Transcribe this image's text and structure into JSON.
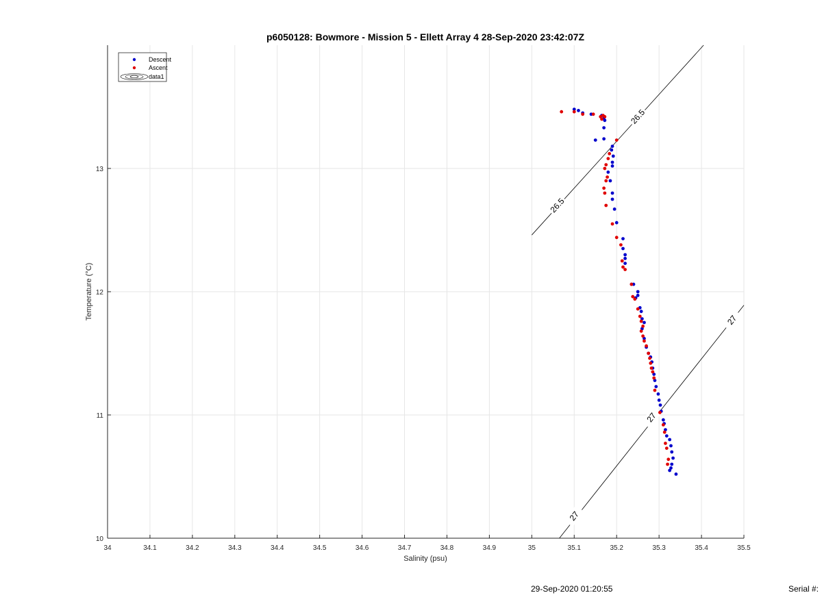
{
  "chart_data": {
    "type": "scatter",
    "title": "p6050128: Bowmore - Mission 5 - Ellett Array 4 28-Sep-2020 23:42:07Z",
    "xlabel": "Salinity (psu)",
    "ylabel": "Temperature (°C)",
    "xlim": [
      34,
      35.5
    ],
    "ylim": [
      10,
      14.0
    ],
    "xticks": [
      34,
      34.1,
      34.2,
      34.3,
      34.4,
      34.5,
      34.6,
      34.7,
      34.8,
      34.9,
      35,
      35.1,
      35.2,
      35.3,
      35.4,
      35.5
    ],
    "xtick_labels": [
      "34",
      "34.1",
      "34.2",
      "34.3",
      "34.4",
      "34.5",
      "34.6",
      "34.7",
      "34.8",
      "34.9",
      "35",
      "35.1",
      "35.2",
      "35.3",
      "35.4",
      "35.5"
    ],
    "yticks": [
      10,
      11,
      12,
      13
    ],
    "ytick_labels": [
      "10",
      "11",
      "12",
      "13"
    ],
    "grid": true,
    "legend_position": "top-left",
    "legend": [
      "Descent",
      "Ascent",
      "data1"
    ],
    "series": [
      {
        "name": "Descent",
        "color": "#0000cc",
        "points": [
          [
            35.1,
            13.48
          ],
          [
            35.11,
            13.47
          ],
          [
            35.12,
            13.45
          ],
          [
            35.14,
            13.44
          ],
          [
            35.165,
            13.43
          ],
          [
            35.17,
            13.41
          ],
          [
            35.172,
            13.39
          ],
          [
            35.17,
            13.33
          ],
          [
            35.15,
            13.23
          ],
          [
            35.17,
            13.24
          ],
          [
            35.19,
            13.18
          ],
          [
            35.188,
            13.15
          ],
          [
            35.192,
            13.1
          ],
          [
            35.19,
            13.05
          ],
          [
            35.19,
            13.02
          ],
          [
            35.18,
            12.97
          ],
          [
            35.185,
            12.9
          ],
          [
            35.19,
            12.8
          ],
          [
            35.19,
            12.75
          ],
          [
            35.195,
            12.67
          ],
          [
            35.2,
            12.56
          ],
          [
            35.215,
            12.43
          ],
          [
            35.215,
            12.35
          ],
          [
            35.22,
            12.3
          ],
          [
            35.22,
            12.27
          ],
          [
            35.22,
            12.23
          ],
          [
            35.235,
            12.06
          ],
          [
            35.24,
            12.06
          ],
          [
            35.25,
            12.0
          ],
          [
            35.25,
            11.97
          ],
          [
            35.245,
            11.95
          ],
          [
            35.255,
            11.87
          ],
          [
            35.258,
            11.84
          ],
          [
            35.26,
            11.78
          ],
          [
            35.265,
            11.75
          ],
          [
            35.26,
            11.7
          ],
          [
            35.265,
            11.62
          ],
          [
            35.27,
            11.55
          ],
          [
            35.275,
            11.5
          ],
          [
            35.28,
            11.47
          ],
          [
            35.283,
            11.43
          ],
          [
            35.285,
            11.38
          ],
          [
            35.288,
            11.33
          ],
          [
            35.29,
            11.28
          ],
          [
            35.293,
            11.23
          ],
          [
            35.298,
            11.17
          ],
          [
            35.3,
            11.12
          ],
          [
            35.303,
            11.08
          ],
          [
            35.305,
            11.03
          ],
          [
            35.31,
            10.96
          ],
          [
            35.312,
            10.93
          ],
          [
            35.315,
            10.88
          ],
          [
            35.318,
            10.83
          ],
          [
            35.325,
            10.8
          ],
          [
            35.328,
            10.75
          ],
          [
            35.33,
            10.7
          ],
          [
            35.333,
            10.65
          ],
          [
            35.33,
            10.6
          ],
          [
            35.328,
            10.57
          ],
          [
            35.325,
            10.55
          ],
          [
            35.34,
            10.52
          ]
        ]
      },
      {
        "name": "Ascent",
        "color": "#e00000",
        "points": [
          [
            35.07,
            13.46
          ],
          [
            35.1,
            13.46
          ],
          [
            35.12,
            13.44
          ],
          [
            35.145,
            13.44
          ],
          [
            35.162,
            13.42
          ],
          [
            35.168,
            13.43
          ],
          [
            35.172,
            13.42
          ],
          [
            35.165,
            13.4
          ],
          [
            35.2,
            13.23
          ],
          [
            35.183,
            13.12
          ],
          [
            35.18,
            13.08
          ],
          [
            35.175,
            13.03
          ],
          [
            35.172,
            13.0
          ],
          [
            35.178,
            12.93
          ],
          [
            35.175,
            12.9
          ],
          [
            35.17,
            12.84
          ],
          [
            35.172,
            12.8
          ],
          [
            35.175,
            12.7
          ],
          [
            35.19,
            12.55
          ],
          [
            35.2,
            12.44
          ],
          [
            35.21,
            12.38
          ],
          [
            35.213,
            12.25
          ],
          [
            35.215,
            12.2
          ],
          [
            35.22,
            12.18
          ],
          [
            35.235,
            12.06
          ],
          [
            35.238,
            11.96
          ],
          [
            35.243,
            11.94
          ],
          [
            35.25,
            11.86
          ],
          [
            35.255,
            11.8
          ],
          [
            35.258,
            11.76
          ],
          [
            35.262,
            11.72
          ],
          [
            35.258,
            11.68
          ],
          [
            35.262,
            11.64
          ],
          [
            35.265,
            11.6
          ],
          [
            35.27,
            11.56
          ],
          [
            35.275,
            11.5
          ],
          [
            35.278,
            11.46
          ],
          [
            35.28,
            11.42
          ],
          [
            35.282,
            11.38
          ],
          [
            35.285,
            11.35
          ],
          [
            35.288,
            11.3
          ],
          [
            35.29,
            11.2
          ],
          [
            35.302,
            11.02
          ],
          [
            35.31,
            10.92
          ],
          [
            35.313,
            10.86
          ],
          [
            35.315,
            10.77
          ],
          [
            35.318,
            10.73
          ],
          [
            35.322,
            10.64
          ],
          [
            35.32,
            10.6
          ]
        ]
      }
    ],
    "contours": [
      {
        "name": "data1",
        "label": "26.5",
        "points": [
          [
            35.0,
            12.46
          ],
          [
            35.405,
            14.0
          ]
        ],
        "label_positions": [
          [
            35.06,
            12.7
          ],
          [
            35.25,
            13.42
          ]
        ]
      },
      {
        "name": "data1",
        "label": "27",
        "points": [
          [
            35.065,
            10.0
          ],
          [
            35.5,
            11.89
          ]
        ],
        "label_positions": [
          [
            35.1,
            10.18
          ],
          [
            35.282,
            10.98
          ],
          [
            35.472,
            11.77
          ]
        ]
      }
    ]
  },
  "footer": {
    "timestamp": "29-Sep-2020 01:20:55",
    "serial": "Serial #:"
  }
}
